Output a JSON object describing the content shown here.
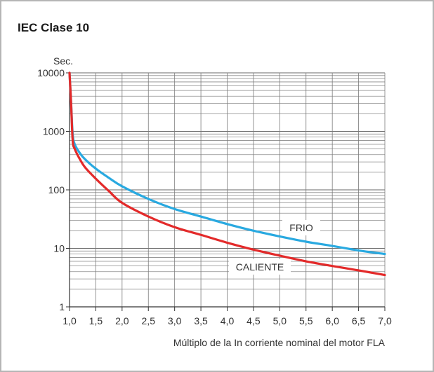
{
  "chart_data": {
    "type": "line",
    "title": "IEC Clase 10",
    "xlabel": "Múltiplo de la In corriente nominal del motor FLA",
    "ylabel": "Sec.",
    "y_scale": "log",
    "xlim": [
      1.0,
      7.0
    ],
    "ylim": [
      1,
      10000
    ],
    "x_ticks": [
      1.0,
      1.5,
      2.0,
      2.5,
      3.0,
      3.5,
      4.0,
      4.5,
      5.0,
      5.5,
      6.0,
      6.5,
      7.0
    ],
    "x_tick_labels": [
      "1,0",
      "1,5",
      "2,0",
      "2,5",
      "3,0",
      "3,5",
      "4,0",
      "4,5",
      "5,0",
      "5,5",
      "6,0",
      "6,5",
      "7,0"
    ],
    "y_ticks": [
      1,
      10,
      100,
      1000,
      10000
    ],
    "y_tick_labels": [
      "1",
      "10",
      "100",
      "1000",
      "10000"
    ],
    "grid": true,
    "series": [
      {
        "name": "FRIO",
        "color": "#29a9e0",
        "points": [
          [
            1.0,
            10000
          ],
          [
            1.03,
            3000
          ],
          [
            1.06,
            900
          ],
          [
            1.1,
            600
          ],
          [
            1.2,
            420
          ],
          [
            1.3,
            330
          ],
          [
            1.5,
            230
          ],
          [
            1.75,
            160
          ],
          [
            2.0,
            115
          ],
          [
            2.5,
            70
          ],
          [
            3.0,
            47
          ],
          [
            3.5,
            35
          ],
          [
            4.0,
            26
          ],
          [
            4.5,
            20
          ],
          [
            5.0,
            16
          ],
          [
            5.5,
            13
          ],
          [
            6.0,
            11
          ],
          [
            6.5,
            9.2
          ],
          [
            7.0,
            8.0
          ]
        ]
      },
      {
        "name": "CALIENTE",
        "color": "#e32a2a",
        "points": [
          [
            1.0,
            10000
          ],
          [
            1.03,
            3000
          ],
          [
            1.06,
            700
          ],
          [
            1.1,
            500
          ],
          [
            1.2,
            330
          ],
          [
            1.3,
            240
          ],
          [
            1.5,
            155
          ],
          [
            1.75,
            95
          ],
          [
            2.0,
            60
          ],
          [
            2.5,
            35
          ],
          [
            3.0,
            23
          ],
          [
            3.5,
            17
          ],
          [
            4.0,
            12.5
          ],
          [
            4.5,
            9.5
          ],
          [
            5.0,
            7.5
          ],
          [
            5.5,
            6.0
          ],
          [
            6.0,
            5.0
          ],
          [
            6.5,
            4.2
          ],
          [
            7.0,
            3.5
          ]
        ]
      }
    ]
  }
}
